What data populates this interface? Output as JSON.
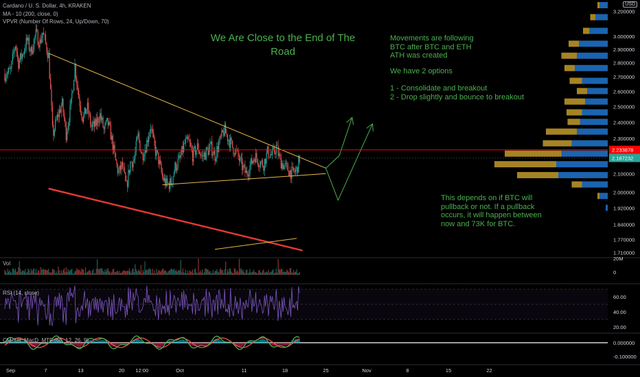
{
  "header": {
    "symbol_line": "Cardano / U. S. Dollar, 4h, KRAKEN",
    "ma_line": "MA - 10 (200, close, 0)",
    "vpvr_line": "VPVR (Number Of Rows, 24, Up/Down, 70)",
    "currency_badge": "USD"
  },
  "annotations": {
    "title": "We Are Close to the End of The Road",
    "movements": "Movements are following\nBTC after BTC and ETH\nATH was created",
    "options_header": "We have 2 options",
    "options": "1 - Consolidate and breakout\n2 - Drop slightly and bounce to breakout",
    "note": "This depends on if BTC will\npullback or not. If a pullback\noccurs, it will happen between\nnow and 73K for BTC."
  },
  "panes": {
    "volume_label": "Vol",
    "rsi_label": "RSI (14, close)",
    "macd_label": "CM_Ult_MacD_MTF (60, 12, 26, 9)"
  },
  "colors": {
    "background": "#000000",
    "up": "#26a69a",
    "down": "#ef5350",
    "annotation": "#4caf50",
    "trendline": "#e8b84a",
    "support": "#e53935",
    "price_line": "#ff0000",
    "rsi": "#7e57c2",
    "vp_up": "#1e6fc2",
    "vp_down": "#c39b2c"
  },
  "chart_data": {
    "type": "candlestick",
    "symbol": "ADAUSD",
    "timeframe": "4h",
    "exchange": "KRAKEN",
    "y_scale": "log",
    "ylim": [
      1.7,
      3.25
    ],
    "price_ticks": [
      "3.200000",
      "3.000000",
      "2.900000",
      "2.800000",
      "2.700000",
      "2.600000",
      "2.500000",
      "2.400000",
      "2.300000",
      "2.100000",
      "2.000000",
      "1.920000",
      "1.840000",
      "1.770000",
      "1.710000"
    ],
    "price_tick_values": [
      3.2,
      3.0,
      2.9,
      2.8,
      2.7,
      2.6,
      2.5,
      2.4,
      2.3,
      2.1,
      2.0,
      1.92,
      1.84,
      1.77,
      1.71
    ],
    "price_labels": [
      {
        "text": "2.233878",
        "value": 2.233878,
        "color": "#ff0000"
      },
      {
        "text": "2.187232",
        "value": 2.187232,
        "color": "#26a69a"
      }
    ],
    "x_ticks": [
      "Sep",
      "7",
      "13",
      "20",
      "12:00",
      "Oct",
      "11",
      "18",
      "25",
      "Nov",
      "8",
      "15",
      "22"
    ],
    "x_tick_days": [
      1,
      7,
      13,
      20,
      23.5,
      30,
      41,
      48,
      55,
      62,
      69,
      76,
      83
    ],
    "price_path": [
      [
        0,
        2.72
      ],
      [
        1,
        2.74
      ],
      [
        1.8,
        2.95
      ],
      [
        2.3,
        2.8
      ],
      [
        3,
        2.86
      ],
      [
        3.8,
        2.97
      ],
      [
        4.5,
        2.88
      ],
      [
        5.3,
        3.02
      ],
      [
        6,
        2.95
      ],
      [
        6.5,
        3.03
      ],
      [
        7.5,
        2.85
      ],
      [
        8.2,
        2.32
      ],
      [
        9,
        2.43
      ],
      [
        9.8,
        2.52
      ],
      [
        10.5,
        2.33
      ],
      [
        11.3,
        2.5
      ],
      [
        12,
        2.78
      ],
      [
        12.7,
        2.55
      ],
      [
        13.4,
        2.42
      ],
      [
        14.1,
        2.5
      ],
      [
        14.8,
        2.37
      ],
      [
        15.5,
        2.38
      ],
      [
        16.3,
        2.45
      ],
      [
        17,
        2.35
      ],
      [
        17.6,
        2.4
      ],
      [
        18.2,
        2.32
      ],
      [
        18.9,
        2.18
      ],
      [
        19.5,
        2.1
      ],
      [
        20.1,
        2.15
      ],
      [
        20.8,
        2.02
      ],
      [
        21.5,
        2.16
      ],
      [
        22.2,
        2.18
      ],
      [
        22.8,
        2.32
      ],
      [
        23.5,
        2.2
      ],
      [
        24.2,
        2.26
      ],
      [
        25,
        2.38
      ],
      [
        25.6,
        2.25
      ],
      [
        26.3,
        2.18
      ],
      [
        27,
        2.08
      ],
      [
        27.7,
        2.04
      ],
      [
        28.5,
        2.05
      ],
      [
        29.2,
        2.14
      ],
      [
        30,
        2.18
      ],
      [
        30.8,
        2.27
      ],
      [
        31.5,
        2.28
      ],
      [
        32.2,
        2.2
      ],
      [
        33,
        2.25
      ],
      [
        33.8,
        2.19
      ],
      [
        34.5,
        2.22
      ],
      [
        35.3,
        2.25
      ],
      [
        36,
        2.2
      ],
      [
        36.8,
        2.28
      ],
      [
        37.6,
        2.35
      ],
      [
        38.3,
        2.3
      ],
      [
        39,
        2.25
      ],
      [
        39.8,
        2.21
      ],
      [
        40.5,
        2.15
      ],
      [
        41.3,
        2.1
      ],
      [
        42,
        2.14
      ],
      [
        42.8,
        2.2
      ],
      [
        43.5,
        2.17
      ],
      [
        44.3,
        2.15
      ],
      [
        45,
        2.22
      ],
      [
        45.8,
        2.2
      ],
      [
        46.5,
        2.25
      ],
      [
        47.2,
        2.17
      ],
      [
        47.9,
        2.14
      ],
      [
        48.6,
        2.12
      ],
      [
        49.3,
        2.1
      ],
      [
        50,
        2.12
      ],
      [
        50.6,
        2.2
      ]
    ],
    "drawings": [
      {
        "name": "descending-resistance",
        "from": [
          7.5,
          2.87
        ],
        "to": [
          55,
          2.13
        ]
      },
      {
        "name": "ascending-support",
        "from": [
          27,
          2.04
        ],
        "to": [
          55,
          2.1
        ]
      },
      {
        "name": "lower-support",
        "from": [
          7.5,
          2.02
        ],
        "to": [
          51,
          1.72
        ]
      },
      {
        "name": "lower-support-trend",
        "from": [
          36,
          1.725
        ],
        "to": [
          50,
          1.775
        ]
      },
      {
        "name": "path-option-1",
        "points": [
          [
            55,
            2.13
          ],
          [
            57.3,
            2.2
          ],
          [
            59.5,
            2.43
          ]
        ]
      },
      {
        "name": "path-option-2",
        "points": [
          [
            55,
            2.13
          ],
          [
            57.1,
            1.96
          ],
          [
            63,
            2.39
          ]
        ]
      }
    ],
    "volume_axis": [
      "20M",
      "0"
    ],
    "rsi_axis": [
      "60.00",
      "40.00",
      "20.00"
    ],
    "rsi_bands": [
      70,
      50,
      30
    ],
    "rsi_last": 65,
    "macd_axis": [
      "0.000000",
      "-0.100000"
    ],
    "volume_profile_prices": [
      3.25,
      3.15,
      3.04,
      2.94,
      2.85,
      2.76,
      2.67,
      2.6,
      2.53,
      2.46,
      2.4,
      2.34,
      2.27,
      2.21,
      2.15,
      2.09,
      2.04,
      1.98,
      1.92
    ],
    "volume_profile_up": [
      0.08,
      0.12,
      0.18,
      0.28,
      0.3,
      0.32,
      0.25,
      0.2,
      0.22,
      0.25,
      0.27,
      0.3,
      0.35,
      0.45,
      0.5,
      0.48,
      0.25,
      0.08,
      0.02
    ],
    "volume_profile_down": [
      0.02,
      0.05,
      0.06,
      0.1,
      0.15,
      0.1,
      0.12,
      0.1,
      0.2,
      0.15,
      0.12,
      0.3,
      0.28,
      0.55,
      0.6,
      0.4,
      0.1,
      0.02,
      0.0
    ]
  }
}
